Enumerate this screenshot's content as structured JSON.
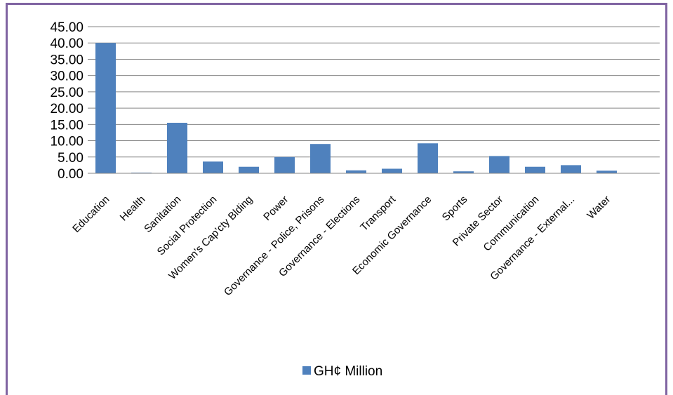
{
  "chart_data": {
    "type": "bar",
    "title": "",
    "xlabel": "",
    "ylabel": "",
    "ylim": [
      0,
      45
    ],
    "yticks": [
      "0.00",
      "5.00",
      "10.00",
      "15.00",
      "20.00",
      "25.00",
      "30.00",
      "35.00",
      "40.00",
      "45.00"
    ],
    "grid": true,
    "legend_position": "bottom",
    "categories": [
      "Education",
      "Health",
      "Sanitation",
      "Social Protection",
      "Women's Cap'cty Blding",
      "Power",
      "Governance - Police, Prisons",
      "Governance - Elections",
      "Transport",
      "Economic Governance",
      "Sports",
      "Private Sector",
      "Communication",
      "Governance - External...",
      "Water"
    ],
    "series": [
      {
        "name": "GH¢ Million",
        "color": "#4f81bd",
        "values": [
          40.0,
          0.2,
          15.5,
          3.6,
          2.0,
          5.0,
          9.0,
          0.9,
          1.4,
          9.2,
          0.6,
          5.3,
          2.0,
          2.5,
          0.8
        ]
      }
    ]
  }
}
